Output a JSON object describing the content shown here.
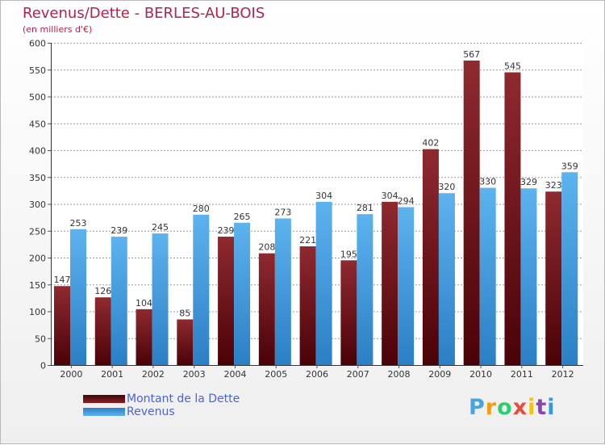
{
  "title": "Revenus/Dette - BERLES-AU-BOIS",
  "subtitle": "(en milliers d'€)",
  "chart_data": {
    "type": "bar",
    "title": "Revenus/Dette - BERLES-AU-BOIS",
    "subtitle": "(en milliers d'€)",
    "xlabel": "",
    "ylabel": "",
    "ylim": [
      0,
      600
    ],
    "y_ticks": [
      0,
      50,
      100,
      150,
      200,
      250,
      300,
      350,
      400,
      450,
      500,
      550,
      600
    ],
    "grid": true,
    "legend_position": "bottom-left",
    "categories": [
      "2000",
      "2001",
      "2002",
      "2003",
      "2004",
      "2005",
      "2006",
      "2007",
      "2008",
      "2009",
      "2010",
      "2011",
      "2012"
    ],
    "series": [
      {
        "name": "Montant de la Dette",
        "color": "#7b1a1f",
        "values": [
          147,
          126,
          104,
          85,
          239,
          208,
          221,
          195,
          304,
          402,
          567,
          545,
          323
        ]
      },
      {
        "name": "Revenus",
        "color": "#4da3e6",
        "values": [
          253,
          239,
          245,
          280,
          265,
          273,
          304,
          281,
          294,
          320,
          330,
          329,
          359
        ]
      }
    ]
  },
  "legend": {
    "items": [
      {
        "label": "Montant de la Dette",
        "color": "#7b1a1f"
      },
      {
        "label": "Revenus",
        "color": "#4da3e6"
      }
    ]
  },
  "logo": {
    "letters": [
      "P",
      "r",
      "o",
      "x",
      "i",
      "t",
      "i"
    ],
    "colors": [
      "#4aa3df",
      "#f39c12",
      "#2ecc71",
      "#e74c3c",
      "#f1c40f",
      "#8e44ad",
      "#3498db"
    ]
  }
}
